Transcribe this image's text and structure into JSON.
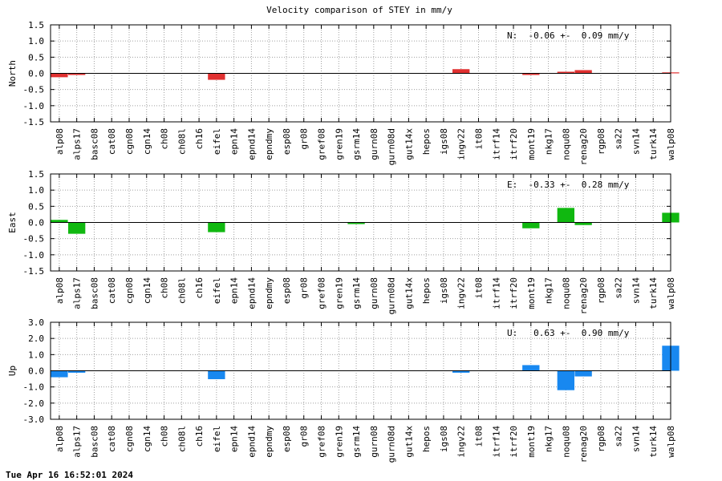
{
  "title": "Velocity comparison of STEY in mm/y",
  "footer": "Tue Apr 16 16:52:01 2024",
  "chart_data": [
    {
      "type": "bar",
      "ylabel": "North",
      "annotation": "N:  -0.06 +-  0.09 mm/y",
      "color": "#e03030",
      "ylim": [
        -1.5,
        1.5
      ],
      "yticks": [
        -1.5,
        -1.0,
        -0.5,
        0.0,
        0.5,
        1.0,
        1.5
      ],
      "ytick_labels": [
        "-1.5",
        "-1.0",
        "-0.5",
        "0.0",
        "0.5",
        "1.0",
        "1.5"
      ],
      "categories": [
        "alp08",
        "alps17",
        "basc08",
        "cat08",
        "cgn08",
        "cgn14",
        "ch08",
        "ch08l",
        "ch16",
        "eifel",
        "epn14",
        "epnd14",
        "epndmy",
        "esp08",
        "gr08",
        "gref08",
        "gren19",
        "gsrm14",
        "gurn08",
        "gurn08d",
        "gut14x",
        "hepos",
        "igs08",
        "ingv22",
        "it08",
        "itrf14",
        "itrf20",
        "mont19",
        "nkg17",
        "noqu08",
        "renag20",
        "rgp08",
        "sa22",
        "svn14",
        "turk14",
        "walp08"
      ],
      "values": [
        -0.12,
        -0.05,
        0,
        0,
        0,
        0,
        0,
        0,
        0,
        -0.2,
        0,
        0,
        0,
        0,
        0,
        0,
        0,
        0,
        0,
        0,
        0,
        0,
        0,
        0.13,
        0,
        0,
        0,
        -0.05,
        0,
        0.05,
        0.1,
        0,
        0,
        0,
        0,
        0.03
      ]
    },
    {
      "type": "bar",
      "ylabel": "East",
      "annotation": "E:  -0.33 +-  0.28 mm/y",
      "color": "#10b810",
      "ylim": [
        -1.5,
        1.5
      ],
      "yticks": [
        -1.5,
        -1.0,
        -0.5,
        0.0,
        0.5,
        1.0,
        1.5
      ],
      "ytick_labels": [
        "-1.5",
        "-1.0",
        "-0.5",
        "0.0",
        "0.5",
        "1.0",
        "1.5"
      ],
      "categories": [
        "alp08",
        "alps17",
        "basc08",
        "cat08",
        "cgn08",
        "cgn14",
        "ch08",
        "ch08l",
        "ch16",
        "eifel",
        "epn14",
        "epnd14",
        "epndmy",
        "esp08",
        "gr08",
        "gref08",
        "gren19",
        "gsrm14",
        "gurn08",
        "gurn08d",
        "gut14x",
        "hepos",
        "igs08",
        "ingv22",
        "it08",
        "itrf14",
        "itrf20",
        "mont19",
        "nkg17",
        "noqu08",
        "renag20",
        "rgp08",
        "sa22",
        "svn14",
        "turk14",
        "walp08"
      ],
      "values": [
        0.08,
        -0.35,
        0,
        0,
        0,
        0,
        0,
        0,
        0,
        -0.3,
        0,
        0,
        0,
        0,
        0,
        0,
        0,
        -0.05,
        0,
        0,
        0,
        0,
        0,
        0,
        0,
        0,
        0,
        -0.18,
        0,
        0.45,
        -0.08,
        0,
        0,
        0,
        0,
        0.3
      ]
    },
    {
      "type": "bar",
      "ylabel": "Up",
      "annotation": "U:   0.63 +-  0.90 mm/y",
      "color": "#1888f0",
      "ylim": [
        -3.0,
        3.0
      ],
      "yticks": [
        -3.0,
        -2.0,
        -1.0,
        0.0,
        1.0,
        2.0,
        3.0
      ],
      "ytick_labels": [
        "-3.0",
        "-2.0",
        "-1.0",
        "0.0",
        "1.0",
        "2.0",
        "3.0"
      ],
      "categories": [
        "alp08",
        "alps17",
        "basc08",
        "cat08",
        "cgn08",
        "cgn14",
        "ch08",
        "ch08l",
        "ch16",
        "eifel",
        "epn14",
        "epnd14",
        "epndmy",
        "esp08",
        "gr08",
        "gref08",
        "gren19",
        "gsrm14",
        "gurn08",
        "gurn08d",
        "gut14x",
        "hepos",
        "igs08",
        "ingv22",
        "it08",
        "itrf14",
        "itrf20",
        "mont19",
        "nkg17",
        "noqu08",
        "renag20",
        "rgp08",
        "sa22",
        "svn14",
        "turk14",
        "walp08"
      ],
      "values": [
        -0.4,
        -0.12,
        0,
        0,
        0,
        0,
        0,
        0,
        0,
        -0.52,
        0,
        0,
        0,
        0,
        0,
        0,
        0,
        0,
        0,
        0,
        0,
        0,
        0,
        -0.12,
        0,
        0,
        0,
        0.35,
        0,
        -1.2,
        -0.35,
        0,
        0,
        0,
        0,
        1.55
      ]
    }
  ]
}
